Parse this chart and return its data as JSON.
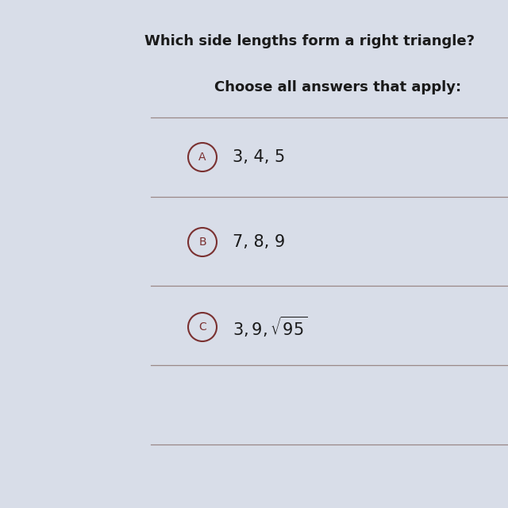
{
  "title": "Which side lengths form a right triangle?",
  "subtitle": "Choose all answers that apply:",
  "bg_color": "#d8dde8",
  "title_color": "#1a1a1a",
  "subtitle_color": "#1a1a1a",
  "line_color": "#9a8888",
  "circle_color": "#7a3030",
  "text_color": "#1a1a1a",
  "options": [
    {
      "label": "A",
      "text": "3, 4, 5",
      "use_math": false
    },
    {
      "label": "B",
      "text": "7, 8, 9",
      "use_math": false
    },
    {
      "label": "C",
      "use_math": true
    }
  ],
  "title_fontsize": 13,
  "subtitle_fontsize": 13,
  "option_fontsize": 15,
  "label_fontsize": 10
}
